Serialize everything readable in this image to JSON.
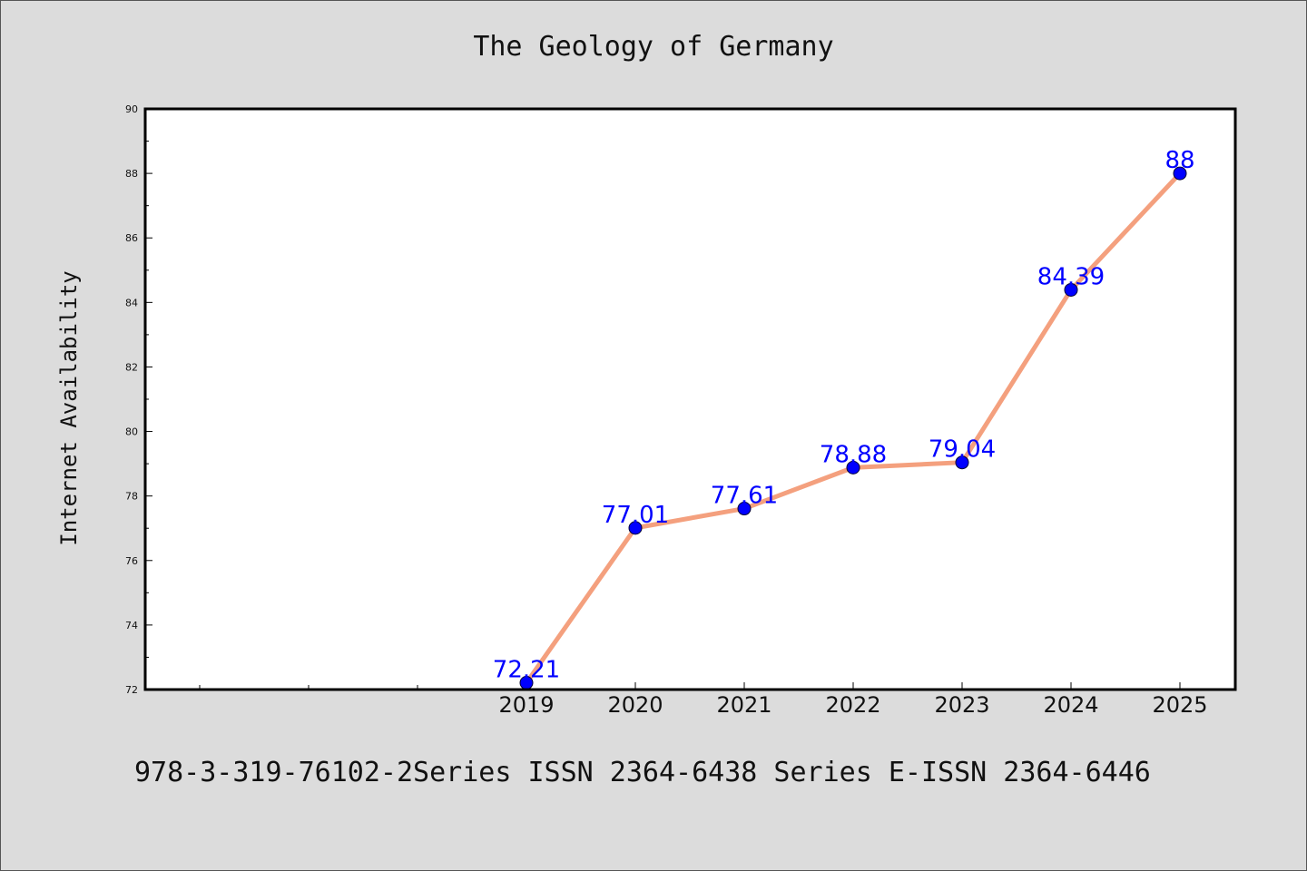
{
  "chart_data": {
    "type": "line",
    "title": "The Geology of Germany",
    "xlabel": "",
    "ylabel": "Internet Availability",
    "categories": [
      "2019",
      "2020",
      "2021",
      "2022",
      "2023",
      "2024",
      "2025"
    ],
    "series": [
      {
        "values": [
          72.21,
          77.01,
          77.61,
          78.88,
          79.04,
          84.39,
          88
        ],
        "data_labels": [
          "72.21",
          "77.01",
          "77.61",
          "78.88",
          "79.04",
          "84.39",
          "88"
        ]
      }
    ],
    "ylim": [
      72,
      90
    ],
    "yticks": [
      72,
      74,
      76,
      78,
      80,
      82,
      84,
      86,
      88,
      90
    ],
    "grid": false,
    "legend": "none",
    "colors": {
      "line": "#f4a07e",
      "marker": "#0000ff",
      "data_label": "#0000ff",
      "background": "#dcdcdc",
      "plot_background": "#ffffff"
    }
  },
  "footer": {
    "text": "978-3-319-76102-2Series ISSN 2364-6438 Series E-ISSN 2364-6446"
  }
}
